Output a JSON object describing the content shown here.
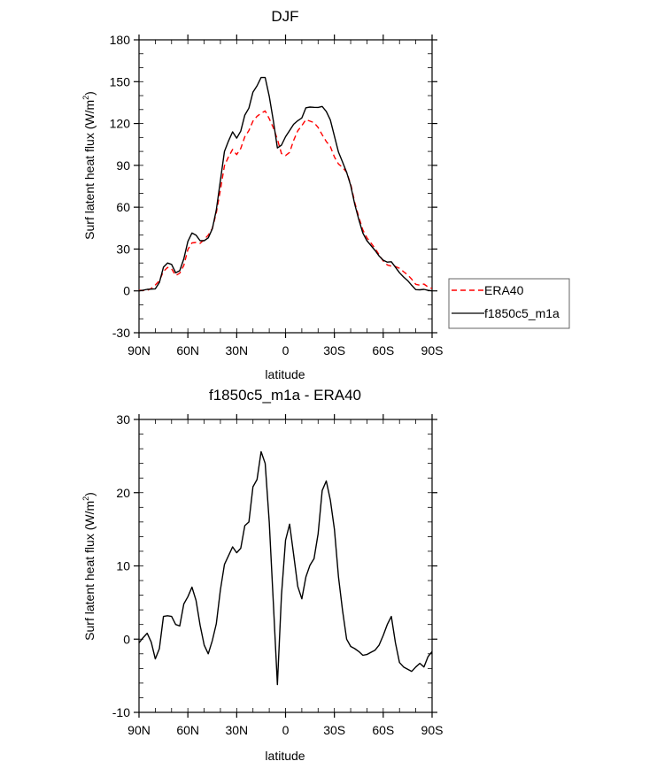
{
  "chart_data": [
    {
      "type": "line",
      "title": "DJF",
      "xlabel": "latitude",
      "ylabel": "Surf latent heat flux (W/m",
      "ylabel_sup": "2",
      "ylabel_close": ")",
      "xlim": [
        90,
        -90
      ],
      "ylim": [
        -30,
        180
      ],
      "yticks": [
        -30,
        0,
        30,
        60,
        90,
        120,
        150,
        180
      ],
      "ytick_labels": [
        "-30",
        "0",
        "30",
        "60",
        "90",
        "120",
        "150",
        "180"
      ],
      "xticks": [
        90,
        60,
        30,
        0,
        -30,
        -60,
        -90
      ],
      "xtick_labels": [
        "90N",
        "60N",
        "30N",
        "0",
        "30S",
        "60S",
        "90S"
      ],
      "legend_position": "right",
      "lat": [
        90,
        87.5,
        85,
        82.5,
        80,
        77.5,
        75,
        72.5,
        70,
        67.5,
        65,
        62.5,
        60,
        57.5,
        55,
        52.5,
        50,
        47.5,
        45,
        42.5,
        40,
        37.5,
        35,
        32.5,
        30,
        27.5,
        25,
        22.5,
        20,
        17.5,
        15,
        12.5,
        10,
        7.5,
        5,
        2.5,
        0,
        -2.5,
        -5,
        -7.5,
        -10,
        -12.5,
        -15,
        -17.5,
        -20,
        -22.5,
        -25,
        -27.5,
        -30,
        -32.5,
        -35,
        -37.5,
        -40,
        -42.5,
        -45,
        -47.5,
        -50,
        -52.5,
        -55,
        -57.5,
        -60,
        -62.5,
        -65,
        -67.5,
        -70,
        -72.5,
        -75,
        -77.5,
        -80,
        -82.5,
        -85,
        -87.5,
        -90
      ],
      "series": [
        {
          "name": "ERA40",
          "color": "#ff0000",
          "dash": true,
          "values": [
            0.5,
            0.3,
            0.3,
            1.7,
            4.2,
            7.3,
            13.9,
            16.8,
            15.9,
            11,
            12.7,
            18.2,
            29.7,
            34.4,
            34.7,
            34.1,
            36.8,
            40,
            44.7,
            55.9,
            72.3,
            89.8,
            96.1,
            101.4,
            97.7,
            102.1,
            110.5,
            115,
            121.7,
            125.2,
            127.4,
            129,
            123.5,
            117,
            108.7,
            98.5,
            97,
            99.3,
            108,
            114.8,
            118.5,
            122.8,
            121.7,
            120.6,
            117.1,
            111.9,
            107.1,
            103.5,
            96,
            91,
            88.5,
            85,
            76.5,
            63.3,
            52.7,
            43.7,
            38.1,
            34.3,
            30.5,
            25.8,
            21.5,
            18.6,
            17.8,
            17.5,
            16.2,
            13.8,
            11.5,
            8.4,
            4.7,
            4.1,
            4.9,
            2.8,
            1.7
          ]
        },
        {
          "name": "f1850c5_m1a",
          "color": "#000000",
          "dash": false,
          "values": [
            0,
            0.5,
            1.1,
            1.3,
            1.5,
            6,
            17,
            20,
            19,
            13,
            14.5,
            23,
            35.5,
            41.5,
            40,
            36,
            36,
            38,
            44.5,
            58,
            79,
            100,
            107.5,
            114,
            109.5,
            114.5,
            126,
            131,
            142.5,
            147,
            153,
            153,
            139.5,
            122,
            102.5,
            104.5,
            110.5,
            115,
            119.5,
            122,
            124,
            131.3,
            131.8,
            131.6,
            131.5,
            132.2,
            128.7,
            122.5,
            111,
            99.5,
            92.4,
            85,
            75.5,
            62,
            51,
            41.5,
            36,
            32.5,
            29,
            25,
            22,
            20.6,
            20.9,
            17,
            13,
            10,
            7.4,
            4,
            0.9,
            0.8,
            1.1,
            0.4,
            0
          ]
        }
      ]
    },
    {
      "type": "line",
      "title": "f1850c5_m1a - ERA40",
      "xlabel": "latitude",
      "ylabel": "Surf latent heat flux (W/m",
      "ylabel_sup": "2",
      "ylabel_close": ")",
      "xlim": [
        90,
        -90
      ],
      "ylim": [
        -10,
        30
      ],
      "yticks": [
        -10,
        0,
        10,
        20,
        30
      ],
      "ytick_labels": [
        "-10",
        "0",
        "10",
        "20",
        "30"
      ],
      "xticks": [
        90,
        60,
        30,
        0,
        -30,
        -60,
        -90
      ],
      "xtick_labels": [
        "90N",
        "60N",
        "30N",
        "0",
        "30S",
        "60S",
        "90S"
      ],
      "lat": [
        90,
        87.5,
        85,
        82.5,
        80,
        77.5,
        75,
        72.5,
        70,
        67.5,
        65,
        62.5,
        60,
        57.5,
        55,
        52.5,
        50,
        47.5,
        45,
        42.5,
        40,
        37.5,
        35,
        32.5,
        30,
        27.5,
        25,
        22.5,
        20,
        17.5,
        15,
        12.5,
        10,
        7.5,
        5,
        2.5,
        0,
        -2.5,
        -5,
        -7.5,
        -10,
        -12.5,
        -15,
        -17.5,
        -20,
        -22.5,
        -25,
        -27.5,
        -30,
        -32.5,
        -35,
        -37.5,
        -40,
        -42.5,
        -45,
        -47.5,
        -50,
        -52.5,
        -55,
        -57.5,
        -60,
        -62.5,
        -65,
        -67.5,
        -70,
        -72.5,
        -75,
        -77.5,
        -80,
        -82.5,
        -85,
        -87.5,
        -90
      ],
      "series": [
        {
          "name": "f1850c5_m1a - ERA40",
          "color": "#000000",
          "dash": false,
          "values": [
            -0.5,
            0.2,
            0.8,
            -0.4,
            -2.7,
            -1.3,
            3.1,
            3.2,
            3.1,
            2,
            1.8,
            4.8,
            5.8,
            7.1,
            5.3,
            1.9,
            -0.8,
            -2,
            -0.2,
            2.1,
            6.7,
            10.2,
            11.4,
            12.6,
            11.8,
            12.4,
            15.5,
            16,
            20.8,
            21.8,
            25.6,
            24,
            16,
            5,
            -6.2,
            6,
            13.5,
            15.7,
            11.5,
            7.2,
            5.5,
            8.5,
            10.1,
            11,
            14.4,
            20.3,
            21.6,
            19,
            15,
            8.5,
            3.9,
            0,
            -1,
            -1.3,
            -1.7,
            -2.2,
            -2.1,
            -1.8,
            -1.5,
            -0.8,
            0.5,
            2,
            3.1,
            -0.5,
            -3.2,
            -3.8,
            -4.1,
            -4.4,
            -3.8,
            -3.3,
            -3.8,
            -2.4,
            -1.7
          ]
        }
      ]
    }
  ]
}
